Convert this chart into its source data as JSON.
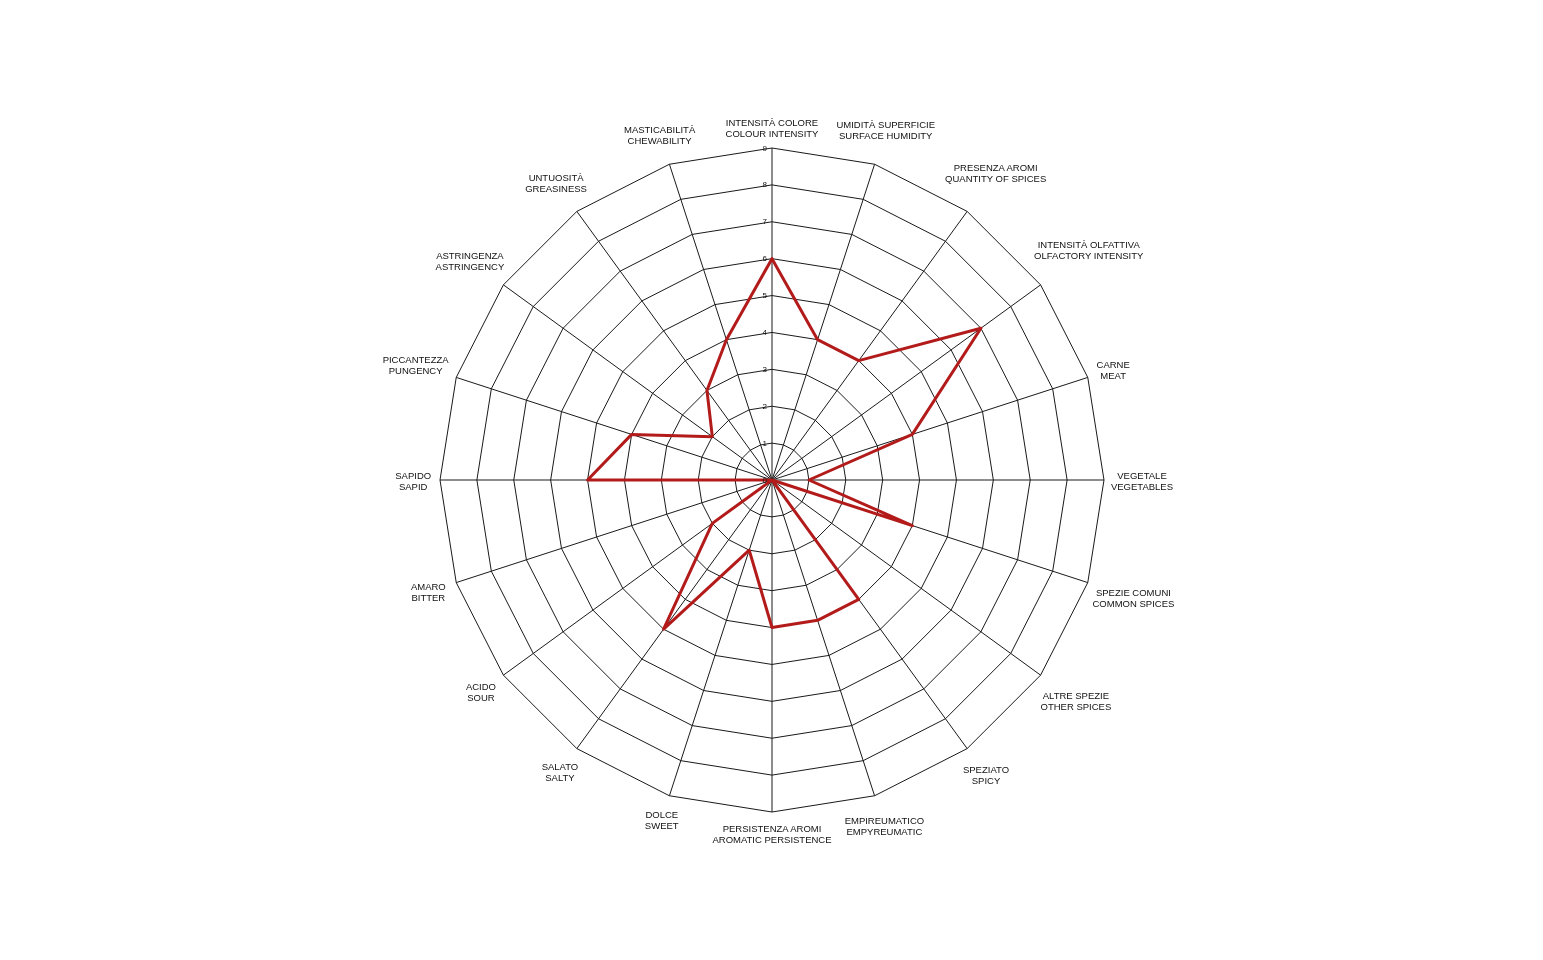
{
  "chart_data": {
    "type": "radar",
    "categories": [
      "INTENSITÀ COLORE\nCOLOUR INTENSITY",
      "UMIDITÀ SUPERFICIE\nSURFACE HUMIDITY",
      "PRESENZA AROMI\nQUANTITY OF SPICES",
      "INTENSITÀ OLFATTIVA\nOLFACTORY INTENSITY",
      "CARNE\nMEAT",
      "VEGETALE\nVEGETABLES",
      "SPEZIE COMUNI\nCOMMON SPICES",
      "ALTRE SPEZIE\nOTHER SPICES",
      "SPEZIATO\nSPICY",
      "EMPIREUMATICO\nEMPYREUMATIC",
      "PERSISTENZA AROMI\nAROMATIC PERSISTENCE",
      "DOLCE\nSWEET",
      "SALATO\nSALTY",
      "ACIDO\nSOUR",
      "AMARO\nBITTER",
      "SAPIDO\nSAPID",
      "PICCANTEZZA\nPUNGENCY",
      "ASTRINGENZA\nASTRINGENCY",
      "UNTUOSITÀ\nGREASINESS",
      "MASTICABILITÀ\nCHEWABILITY"
    ],
    "series": [
      {
        "color": "#b31b1b",
        "values": [
          6,
          4,
          4,
          7,
          4,
          1,
          4,
          0,
          4,
          4,
          4,
          2,
          5,
          2,
          0,
          5,
          4,
          2,
          3,
          4
        ]
      }
    ],
    "ylim": [
      0,
      9
    ],
    "yticks": [
      0,
      1,
      2,
      3,
      4,
      5,
      6,
      7,
      8,
      9
    ],
    "grid": true
  }
}
